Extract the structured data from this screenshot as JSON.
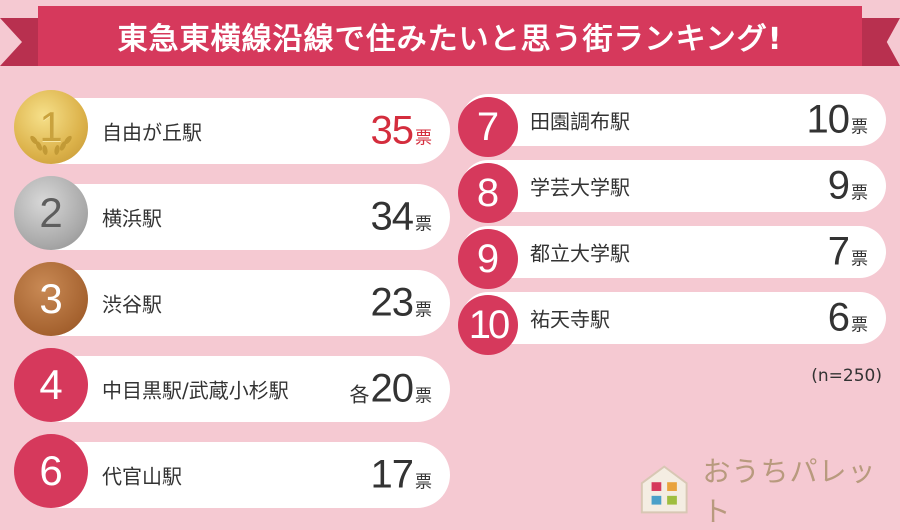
{
  "title": "東急東横線沿線で住みたいと思う街ランキング!",
  "sample_note": "(n=250)",
  "unit": "票",
  "logo_text": "おうちパレット",
  "chart_data": {
    "type": "table",
    "title": "東急東横線沿線で住みたいと思う街ランキング!",
    "columns": [
      "rank",
      "station",
      "votes"
    ],
    "rows": [
      {
        "rank": "1",
        "station": "自由が丘駅",
        "votes": "35",
        "prefix": ""
      },
      {
        "rank": "2",
        "station": "横浜駅",
        "votes": "34",
        "prefix": ""
      },
      {
        "rank": "3",
        "station": "渋谷駅",
        "votes": "23",
        "prefix": ""
      },
      {
        "rank": "4",
        "station": "中目黒駅/武蔵小杉駅",
        "votes": "20",
        "prefix": "各"
      },
      {
        "rank": "6",
        "station": "代官山駅",
        "votes": "17",
        "prefix": ""
      },
      {
        "rank": "7",
        "station": "田園調布駅",
        "votes": "10",
        "prefix": ""
      },
      {
        "rank": "8",
        "station": "学芸大学駅",
        "votes": "9",
        "prefix": ""
      },
      {
        "rank": "9",
        "station": "都立大学駅",
        "votes": "7",
        "prefix": ""
      },
      {
        "rank": "10",
        "station": "祐天寺駅",
        "votes": "6",
        "prefix": ""
      }
    ],
    "sample_size_label": "(n=250)"
  },
  "colors": {
    "background": "#f5c9d2",
    "ribbon": "#d6395c",
    "badge": "#d6395c",
    "gold": "#dcb24a",
    "silver": "#a9a9a9",
    "bronze": "#a5622f",
    "highlight_votes": "#d42d3d"
  }
}
